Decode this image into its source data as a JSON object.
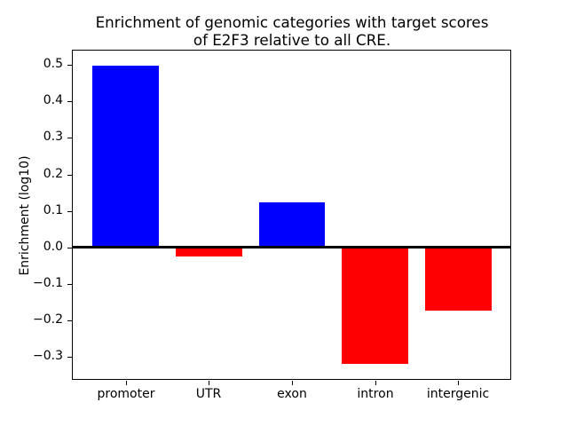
{
  "chart_data": {
    "type": "bar",
    "title": "Enrichment of genomic categories with target scores\nof E2F3 relative to all CRE.",
    "title_lines": [
      "Enrichment of genomic categories with target scores",
      "of E2F3 relative to all CRE."
    ],
    "xlabel": "",
    "ylabel": "Enrichment (log10)",
    "categories": [
      "promoter",
      "UTR",
      "exon",
      "intron",
      "intergenic"
    ],
    "values": [
      0.497,
      -0.025,
      0.124,
      -0.319,
      -0.172
    ],
    "positive_color": "#0000ff",
    "negative_color": "#ff0000",
    "bar_colors": [
      "#0000ff",
      "#ff0000",
      "#0000ff",
      "#ff0000",
      "#ff0000"
    ],
    "ylim": [
      -0.362,
      0.539
    ],
    "yticks": [
      -0.3,
      -0.2,
      -0.1,
      0.0,
      0.1,
      0.2,
      0.3,
      0.4,
      0.5
    ],
    "ytick_labels": [
      "−0.3",
      "−0.2",
      "−0.1",
      "0.0",
      "0.1",
      "0.2",
      "0.3",
      "0.4",
      "0.5"
    ],
    "zero_line": true,
    "zero_line_color": "#000000",
    "grid": false,
    "legend": false,
    "frame_color": "#000000",
    "background_color": "#ffffff"
  }
}
